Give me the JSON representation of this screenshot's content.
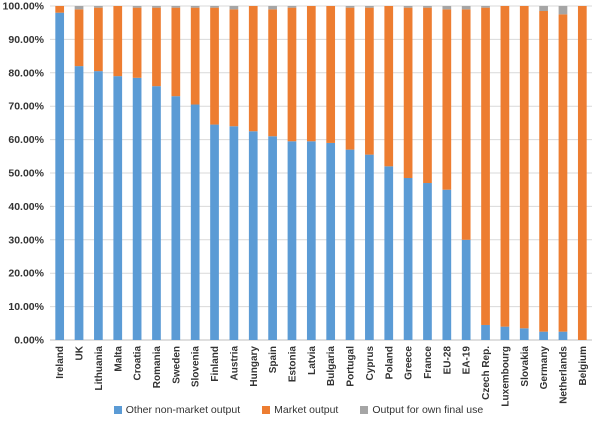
{
  "chart_data": {
    "type": "bar",
    "stacked": true,
    "title": "",
    "xlabel": "",
    "ylabel": "",
    "ylim": [
      0,
      100
    ],
    "yticks": [
      "0.00%",
      "10.00%",
      "20.00%",
      "30.00%",
      "40.00%",
      "50.00%",
      "60.00%",
      "70.00%",
      "80.00%",
      "90.00%",
      "100.00%"
    ],
    "grid": true,
    "legend_position": "bottom",
    "categories": [
      "Ireland",
      "UK",
      "Lithuania",
      "Malta",
      "Croatia",
      "Romania",
      "Sweden",
      "Slovenia",
      "Finland",
      "Austria",
      "Hungary",
      "Spain",
      "Estonia",
      "Latvia",
      "Bulgaria",
      "Portugal",
      "Cyprus",
      "Poland",
      "Greece",
      "France",
      "EU-28",
      "EA-19",
      "Czech Rep.",
      "Luxembourg",
      "Slovakia",
      "Germany",
      "Netherlands",
      "Belgium"
    ],
    "series": [
      {
        "name": "Other non-market output",
        "color": "#5B9BD5",
        "values": [
          98,
          82,
          80.5,
          79,
          78.5,
          76,
          73,
          70.5,
          64.5,
          64,
          62.5,
          61,
          59.5,
          59.5,
          59,
          57,
          55.5,
          52,
          48.5,
          47,
          45,
          30,
          4.5,
          4,
          3.5,
          2.5,
          2.5,
          0
        ]
      },
      {
        "name": "Market output",
        "color": "#ED7D31",
        "values": [
          2,
          17,
          19,
          21,
          21,
          23.5,
          26.5,
          29,
          35,
          35,
          37.5,
          38,
          40,
          40.5,
          41,
          42.5,
          44,
          48,
          51,
          52.5,
          54,
          69,
          95,
          96,
          96.5,
          96,
          95,
          100
        ]
      },
      {
        "name": "Output for own final use",
        "color": "#A5A5A5",
        "values": [
          0,
          1,
          0.5,
          0,
          0.5,
          0.5,
          0.5,
          0.5,
          0.5,
          1,
          0,
          1,
          0.5,
          0,
          0,
          0.5,
          0.5,
          0,
          0.5,
          0.5,
          1,
          1,
          0.5,
          0,
          0,
          1.5,
          2.5,
          0
        ]
      }
    ]
  }
}
